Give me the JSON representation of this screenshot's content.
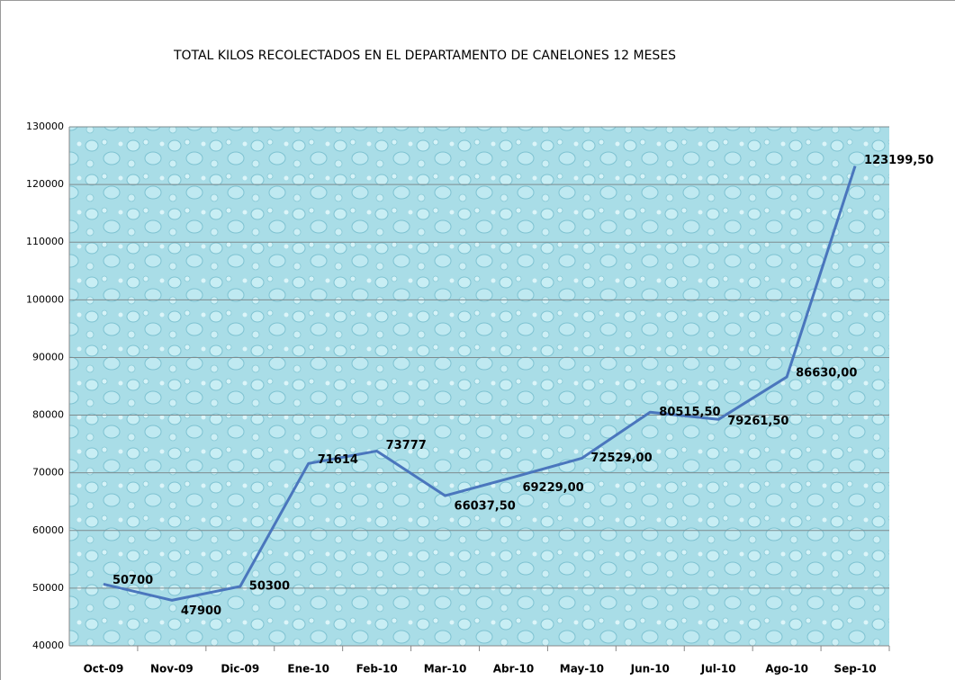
{
  "chart_data": {
    "type": "line",
    "title": "TOTAL KILOS RECOLECTADOS EN EL  DEPARTAMENTO DE CANELONES 12 MESES",
    "categories": [
      "Oct-09",
      "Nov-09",
      "Dic-09",
      "Ene-10",
      "Feb-10",
      "Mar-10",
      "Abr-10",
      "May-10",
      "Jun-10",
      "Jul-10",
      "Ago-10",
      "Sep-10"
    ],
    "values": [
      50700,
      47900,
      50300,
      71614,
      73777,
      66037.5,
      69229,
      72529,
      80515.5,
      79261.5,
      86630,
      123199.5
    ],
    "value_labels": [
      "50700",
      "47900",
      "50300",
      "71614",
      "73777",
      "66037,50",
      "69229,00",
      "72529,00",
      "80515,50",
      "79261,50",
      "86630,00",
      "123199,50"
    ],
    "color": "#4a76bd",
    "ylim": [
      40000,
      130000
    ],
    "yticks": [
      40000,
      50000,
      60000,
      70000,
      80000,
      90000,
      100000,
      110000,
      120000,
      130000
    ],
    "grid": true
  }
}
